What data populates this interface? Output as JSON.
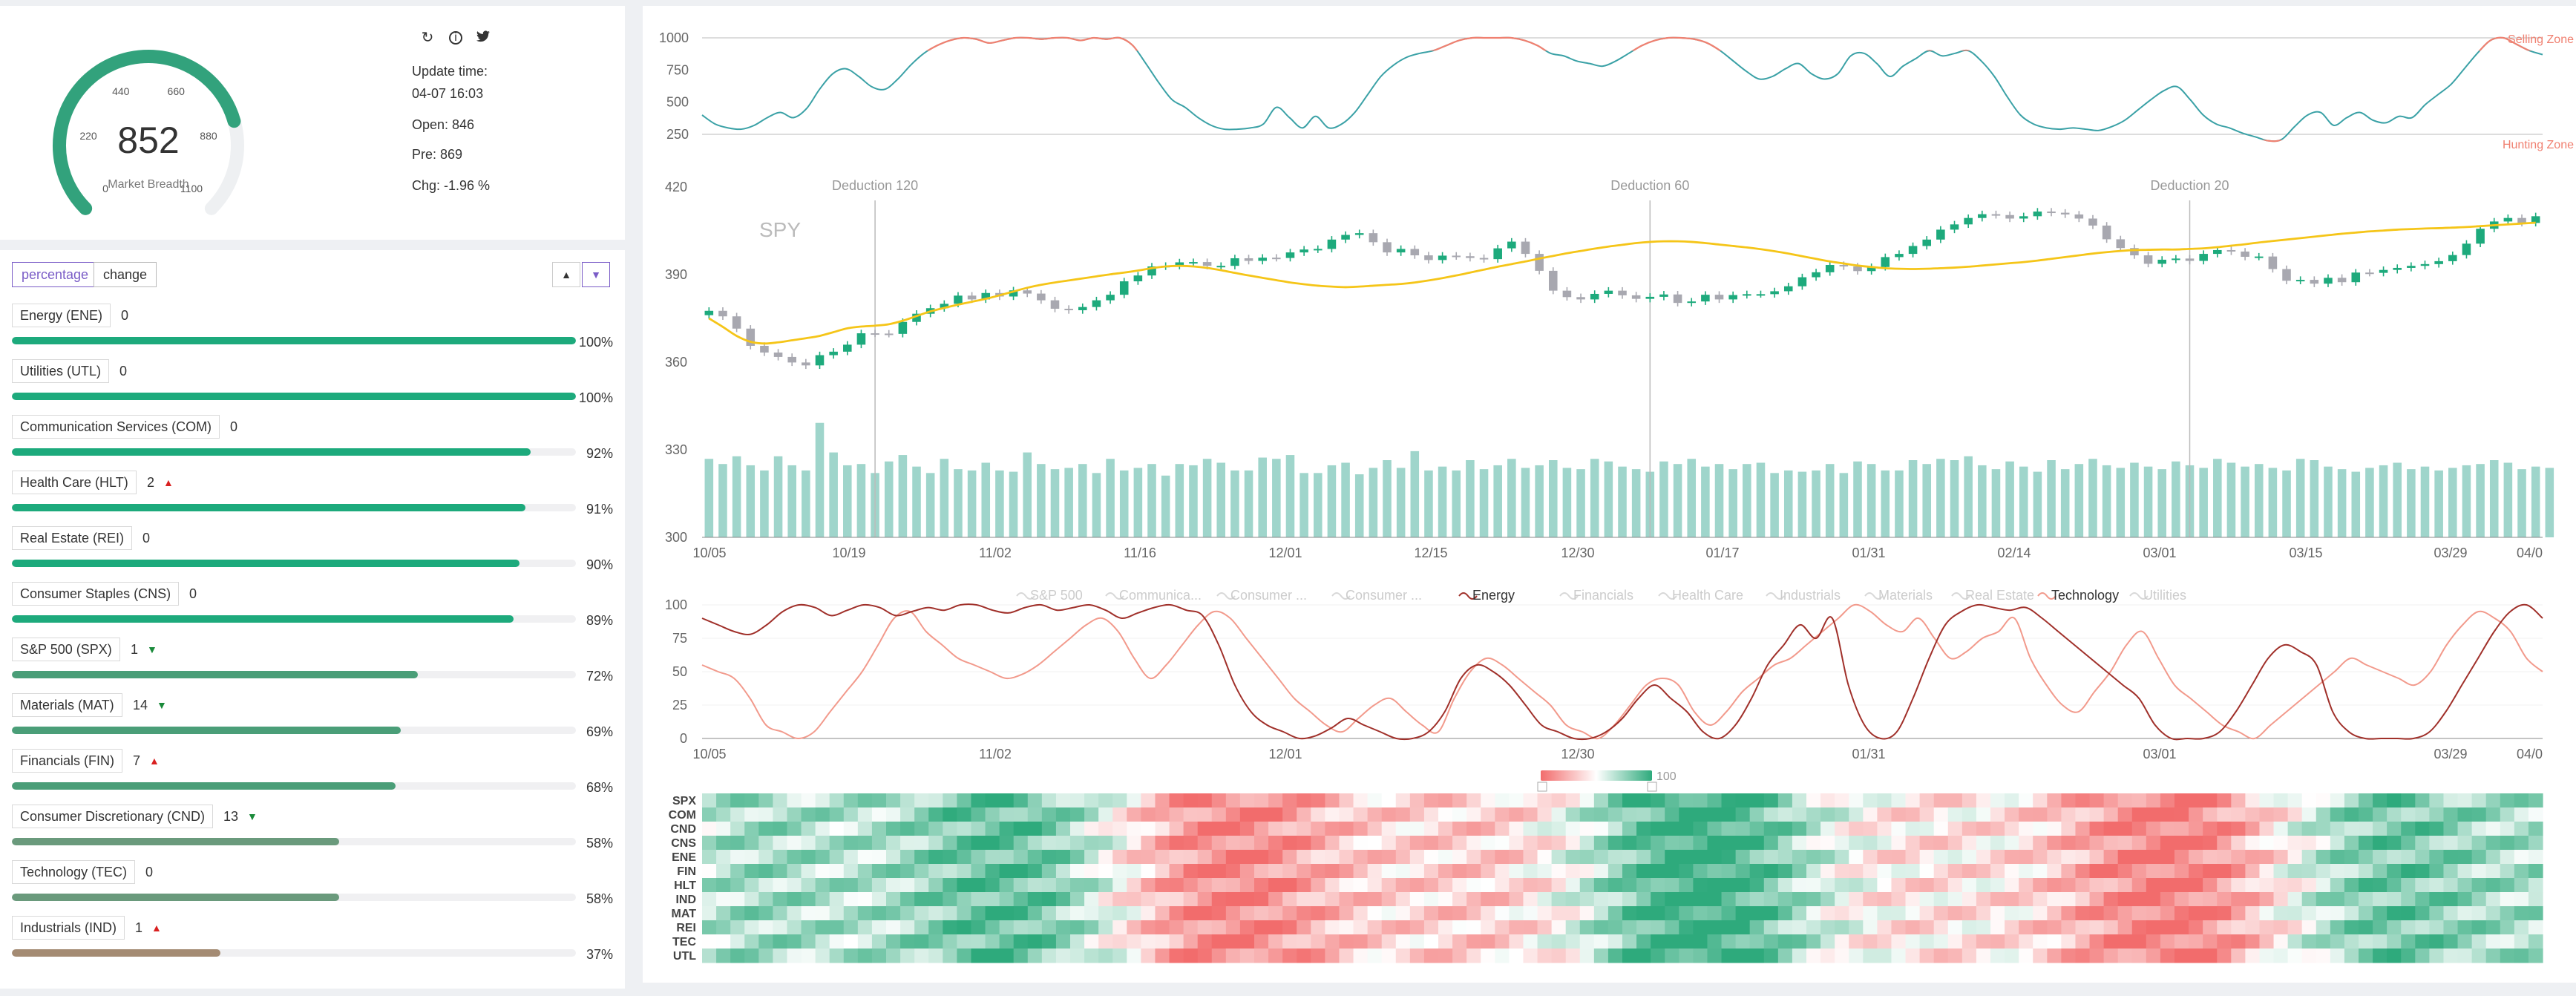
{
  "gauge": {
    "value": "852",
    "label": "Market Breadth",
    "ticks": [
      "0",
      "220",
      "440",
      "660",
      "880",
      "1100"
    ],
    "max": 1100,
    "color": "#32a27c"
  },
  "toolbar": {
    "icons": [
      "refresh-icon",
      "info-icon",
      "twitter-icon"
    ]
  },
  "stats": {
    "update_label": "Update time:",
    "update_value": "04-07 16:03",
    "open": "Open: 846",
    "pre": "Pre: 869",
    "chg": "Chg: -1.96 %"
  },
  "controls": {
    "percentage": "percentage",
    "change": "change"
  },
  "sectors": [
    {
      "label": "Energy (ENE)",
      "count": "0",
      "arrow": "",
      "pct": "100%",
      "fill": 1.0,
      "color": "#1daa7c"
    },
    {
      "label": "Utilities (UTL)",
      "count": "0",
      "arrow": "",
      "pct": "100%",
      "fill": 1.0,
      "color": "#1daa7c"
    },
    {
      "label": "Communication Services (COM)",
      "count": "0",
      "arrow": "",
      "pct": "92%",
      "fill": 0.92,
      "color": "#1daa7c"
    },
    {
      "label": "Health Care (HLT)",
      "count": "2",
      "arrow": "up",
      "pct": "91%",
      "fill": 0.91,
      "color": "#1daa7c"
    },
    {
      "label": "Real Estate (REI)",
      "count": "0",
      "arrow": "",
      "pct": "90%",
      "fill": 0.9,
      "color": "#1daa7c"
    },
    {
      "label": "Consumer Staples (CNS)",
      "count": "0",
      "arrow": "",
      "pct": "89%",
      "fill": 0.89,
      "color": "#1daa7c"
    },
    {
      "label": "S&P 500 (SPX)",
      "count": "1",
      "arrow": "down",
      "pct": "72%",
      "fill": 0.72,
      "color": "#4a9e78"
    },
    {
      "label": "Materials (MAT)",
      "count": "14",
      "arrow": "down",
      "pct": "69%",
      "fill": 0.69,
      "color": "#4a9e78"
    },
    {
      "label": "Financials (FIN)",
      "count": "7",
      "arrow": "up",
      "pct": "68%",
      "fill": 0.68,
      "color": "#4a9e78"
    },
    {
      "label": "Consumer Discretionary (CND)",
      "count": "13",
      "arrow": "down",
      "pct": "58%",
      "fill": 0.58,
      "color": "#6a9a7c"
    },
    {
      "label": "Technology (TEC)",
      "count": "0",
      "arrow": "",
      "pct": "58%",
      "fill": 0.58,
      "color": "#6a9a7c"
    },
    {
      "label": "Industrials (IND)",
      "count": "1",
      "arrow": "up",
      "pct": "37%",
      "fill": 0.37,
      "color": "#a48b73"
    }
  ],
  "chart_data": [
    {
      "type": "line",
      "ylim": [
        250,
        1000
      ],
      "yticks": [
        "1000",
        "750",
        "500",
        "250"
      ],
      "annotations": [
        "Selling Zone",
        "Hunting Zone"
      ],
      "thresholds": [
        900,
        150
      ],
      "colors": {
        "line": "#3aa1a6",
        "zone": "#f08070"
      },
      "values": [
        400,
        330,
        300,
        290,
        320,
        380,
        420,
        380,
        450,
        600,
        720,
        760,
        700,
        620,
        600,
        680,
        790,
        880,
        940,
        980,
        1000,
        990,
        960,
        980,
        1000,
        1000,
        990,
        1000,
        1000,
        980,
        1000,
        990,
        1000,
        940,
        800,
        650,
        520,
        460,
        380,
        320,
        290,
        290,
        300,
        330,
        460,
        380,
        300,
        390,
        300,
        330,
        420,
        560,
        700,
        790,
        850,
        880,
        900,
        940,
        980,
        1000,
        1000,
        1000,
        1000,
        980,
        940,
        880,
        860,
        820,
        800,
        780,
        820,
        880,
        940,
        980,
        1000,
        1000,
        990,
        960,
        900,
        820,
        740,
        680,
        700,
        760,
        800,
        720,
        680,
        720,
        860,
        880,
        800,
        700,
        780,
        840,
        900,
        860,
        880,
        900,
        820,
        700,
        540,
        400,
        330,
        300,
        290,
        300,
        290,
        280,
        310,
        360,
        440,
        520,
        590,
        620,
        520,
        400,
        330,
        300,
        260,
        230,
        200,
        210,
        310,
        400,
        420,
        320,
        380,
        420,
        360,
        340,
        390,
        380,
        480,
        560,
        640,
        760,
        880,
        980,
        1000,
        950,
        900,
        870
      ]
    },
    {
      "type": "candlestick",
      "title": "SPY",
      "ylim": [
        300,
        420
      ],
      "yticks": [
        "420",
        "390",
        "360",
        "330",
        "300"
      ],
      "xticks": [
        "10/05",
        "10/19",
        "11/02",
        "11/16",
        "12/01",
        "12/15",
        "12/30",
        "01/17",
        "01/31",
        "02/14",
        "03/01",
        "03/15",
        "03/29",
        "04/0"
      ],
      "deductions": [
        {
          "label": "Deduction 120",
          "index": 12
        },
        {
          "label": "Deduction 60",
          "index": 68
        },
        {
          "label": "Deduction 20",
          "index": 107
        }
      ],
      "colors": {
        "up": "#1daa7c",
        "down": "#a8a8b0",
        "ma": "#f5c518",
        "volume": "#9fd5cb"
      },
      "closes": [
        377.6,
        375.7,
        371.5,
        365.6,
        363.3,
        361.8,
        359.9,
        358.9,
        362.4,
        363.6,
        366.0,
        369.9,
        369.8,
        369.7,
        373.8,
        376.6,
        378.5,
        380.0,
        382.8,
        381.5,
        383.7,
        382.5,
        384.6,
        383.5,
        381.2,
        378.3,
        377.8,
        378.9,
        381.2,
        383.1,
        387.7,
        389.7,
        392.8,
        393.0,
        394.2,
        394.3,
        393.0,
        393.0,
        395.6,
        394.7,
        395.8,
        395.7,
        397.6,
        398.6,
        398.8,
        402.0,
        403.6,
        404.2,
        401.1,
        397.6,
        398.8,
        396.6,
        395.0,
        396.5,
        396.3,
        395.7,
        395.3,
        399.0,
        401.3,
        397.1,
        391.3,
        384.5,
        382.3,
        381.5,
        383.4,
        384.5,
        382.9,
        381.7,
        382.4,
        383.2,
        380.3,
        380.8,
        383.1,
        381.5,
        383.0,
        383.3,
        383.3,
        384.3,
        386.0,
        389.1,
        390.8,
        393.3,
        392.8,
        391.2,
        392.6,
        396.0,
        397.1,
        399.8,
        402.0,
        405.4,
        407.2,
        409.4,
        410.7,
        410.4,
        409.2,
        410.0,
        411.6,
        411.2,
        410.6,
        409.2,
        406.8,
        402.1,
        399.1,
        396.6,
        393.7,
        395.1,
        395.5,
        394.7,
        397.1,
        398.4,
        397.9,
        396.1,
        396.2,
        391.9,
        387.9,
        388.2,
        386.9,
        388.9,
        387.4,
        390.7,
        390.6,
        391.6,
        392.3,
        393.0,
        393.6,
        394.6,
        396.7,
        400.6,
        405.7,
        408.2,
        409.4,
        407.7,
        410.0
      ],
      "ma": [
        375.0,
        372.1,
        369.0,
        367.0,
        366.4,
        366.8,
        367.5,
        368.2,
        369.0,
        370.3,
        371.6,
        372.2,
        372.5,
        373.0,
        374.2,
        375.8,
        377.4,
        378.6,
        379.7,
        380.7,
        381.7,
        382.9,
        384.2,
        385.5,
        386.5,
        387.3,
        388.0,
        388.7,
        389.4,
        390.1,
        390.7,
        391.4,
        392.2,
        392.8,
        393.0,
        392.8,
        392.3,
        391.5,
        390.6,
        389.7,
        388.9,
        388.1,
        387.3,
        386.7,
        386.2,
        385.9,
        385.7,
        385.9,
        386.2,
        386.5,
        386.8,
        387.3,
        388.0,
        388.8,
        389.7,
        390.7,
        391.7,
        392.7,
        393.6,
        394.5,
        395.5,
        396.4,
        397.3,
        398.1,
        398.9,
        399.6,
        400.2,
        400.8,
        401.2,
        401.4,
        401.4,
        401.2,
        400.8,
        400.3,
        399.8,
        399.3,
        398.7,
        398.0,
        397.2,
        396.3,
        395.4,
        394.5,
        393.8,
        393.1,
        392.6,
        392.2,
        392.0,
        391.9,
        392.0,
        392.2,
        392.4,
        392.7,
        393.1,
        393.5,
        393.9,
        394.3,
        394.8,
        395.4,
        396.0,
        396.6,
        397.2,
        397.7,
        398.1,
        398.4,
        398.5,
        398.6,
        398.6,
        398.8,
        399.0,
        399.4,
        399.9,
        400.4,
        401.0,
        401.5,
        402.0,
        402.5,
        403.0,
        403.5,
        404.0,
        404.4,
        404.8,
        405.1,
        405.4,
        405.6,
        405.8,
        405.9,
        406.1,
        406.3,
        406.6,
        406.9,
        407.2,
        407.5,
        407.8
      ],
      "volume": [
        61,
        57,
        63,
        56,
        52,
        63,
        56,
        52,
        89,
        66,
        56,
        57,
        50,
        59,
        64,
        55,
        50,
        61,
        53,
        52,
        58,
        52,
        51,
        66,
        57,
        53,
        54,
        57,
        50,
        61,
        52,
        54,
        57,
        48,
        57,
        56,
        61,
        58,
        52,
        52,
        62,
        61,
        64,
        50,
        50,
        56,
        58,
        49,
        54,
        60,
        54,
        67,
        52,
        55,
        52,
        60,
        53,
        56,
        61,
        54,
        56,
        60,
        54,
        53,
        61,
        59,
        55,
        53,
        51,
        59,
        57,
        61,
        55,
        57,
        53,
        57,
        58,
        50,
        52,
        51,
        52,
        57,
        50,
        59,
        57,
        52,
        52,
        60,
        57,
        61,
        60,
        63,
        56,
        53,
        59,
        55,
        51,
        60,
        53,
        57,
        61,
        56,
        54,
        58,
        55,
        53,
        59,
        56,
        54,
        61,
        58,
        55,
        57,
        54,
        52,
        61,
        60,
        55,
        53,
        51,
        54,
        56,
        58,
        53,
        55,
        52,
        54,
        56,
        57,
        60,
        58,
        53,
        55,
        54
      ]
    },
    {
      "type": "line",
      "ylim": [
        0,
        100
      ],
      "yticks": [
        "100",
        "75",
        "50",
        "25",
        "0"
      ],
      "xticks": [
        "10/05",
        "11/02",
        "12/01",
        "12/30",
        "01/31",
        "03/01",
        "03/29",
        "04/0"
      ],
      "legend": [
        "S&P 500",
        "Communica...",
        "Consumer ...",
        "Consumer ...",
        "Energy",
        "Financials",
        "Health Care",
        "Industrials",
        "Materials",
        "Real Estate",
        "Technology",
        "Utilities"
      ],
      "active": [
        "Energy",
        "Technology"
      ],
      "series": [
        {
          "name": "Energy",
          "color": "#a0302a",
          "values": [
            90,
            85,
            80,
            78,
            85,
            95,
            100,
            98,
            92,
            96,
            100,
            98,
            92,
            95,
            98,
            96,
            100,
            100,
            96,
            94,
            98,
            100,
            96,
            98,
            100,
            96,
            90,
            94,
            98,
            100,
            96,
            92,
            70,
            40,
            20,
            10,
            5,
            0,
            2,
            8,
            15,
            10,
            5,
            0,
            0,
            5,
            20,
            45,
            55,
            50,
            40,
            25,
            10,
            5,
            0,
            0,
            5,
            15,
            30,
            40,
            30,
            20,
            5,
            0,
            10,
            30,
            55,
            70,
            85,
            75,
            90,
            40,
            10,
            0,
            5,
            30,
            60,
            85,
            95,
            100,
            98,
            96,
            98,
            90,
            80,
            70,
            60,
            50,
            40,
            30,
            10,
            0,
            0,
            0,
            5,
            20,
            40,
            60,
            70,
            65,
            55,
            20,
            5,
            0,
            0,
            0,
            0,
            5,
            20,
            40,
            60,
            80,
            95,
            100,
            90
          ]
        },
        {
          "name": "Technology",
          "color": "#f29a8c",
          "values": [
            55,
            50,
            45,
            30,
            10,
            5,
            0,
            5,
            20,
            35,
            50,
            70,
            90,
            95,
            80,
            70,
            60,
            55,
            50,
            45,
            48,
            55,
            65,
            75,
            85,
            90,
            80,
            60,
            45,
            55,
            70,
            85,
            95,
            90,
            75,
            60,
            45,
            30,
            20,
            10,
            5,
            15,
            25,
            30,
            20,
            10,
            5,
            30,
            50,
            60,
            55,
            45,
            35,
            25,
            10,
            5,
            0,
            10,
            25,
            40,
            45,
            40,
            20,
            10,
            20,
            35,
            45,
            55,
            60,
            70,
            80,
            90,
            100,
            95,
            85,
            80,
            90,
            75,
            60,
            65,
            75,
            80,
            90,
            60,
            40,
            25,
            20,
            35,
            50,
            70,
            80,
            60,
            40,
            30,
            20,
            10,
            5,
            0,
            10,
            20,
            30,
            40,
            50,
            60,
            55,
            50,
            45,
            40,
            50,
            70,
            85,
            95,
            90,
            80,
            60,
            50
          ]
        }
      ]
    },
    {
      "type": "heatmap",
      "rows": [
        "SPX",
        "COM",
        "CND",
        "CNS",
        "ENE",
        "FIN",
        "HLT",
        "IND",
        "MAT",
        "REI",
        "TEC",
        "UTL"
      ],
      "scale_label": "100",
      "colors": {
        "low": "#f26c6c",
        "mid": "#ffffff",
        "high": "#2eaa7c"
      }
    }
  ]
}
